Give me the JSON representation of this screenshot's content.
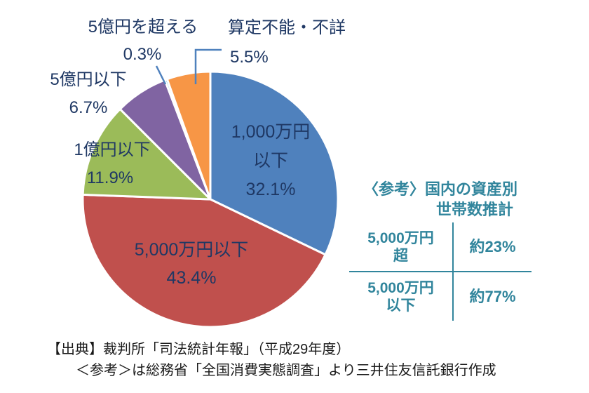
{
  "chart_data": {
    "type": "pie",
    "title": "",
    "unit": "%",
    "start_angle": "top",
    "direction": "clockwise",
    "slices": [
      {
        "label": "1,000万円以下",
        "label_lines": [
          "1,000万円",
          "以下"
        ],
        "pct": "32.1%",
        "value": 32.1,
        "color": "#4F81BD"
      },
      {
        "label": "5,000万円以下",
        "pct": "43.4%",
        "value": 43.4,
        "color": "#C0504D"
      },
      {
        "label": "1億円以下",
        "pct": "11.9%",
        "value": 11.9,
        "color": "#9BBB59"
      },
      {
        "label": "5億円以下",
        "pct": "6.7%",
        "value": 6.7,
        "color": "#8064A2"
      },
      {
        "label": "5億円を超える",
        "pct": "0.3%",
        "value": 0.3,
        "color": "#4BACC6"
      },
      {
        "label": "算定不能・不詳",
        "pct": "5.5%",
        "value": 5.5,
        "color": "#F79646"
      }
    ]
  },
  "reference": {
    "title_line1": "〈参考〉国内の資産別",
    "title_line2": "世帯数推計",
    "rows": [
      {
        "label_line1": "5,000万円",
        "label_line2": "超",
        "value": "約23%"
      },
      {
        "label_line1": "5,000万円",
        "label_line2": "以下",
        "value": "約77%"
      }
    ]
  },
  "source": {
    "line1": "【出典】裁判所「司法統計年報」（平成29年度）",
    "line2": "＜参考＞は総務省「全国消費実態調査」より三井住友信託銀行作成"
  },
  "colors": {
    "label_text": "#1F3864",
    "leader_line": "#4F81BD",
    "reference_accent": "#31859C",
    "source_text": "#1A1A1A",
    "slice_border": "#FFFFFF"
  }
}
